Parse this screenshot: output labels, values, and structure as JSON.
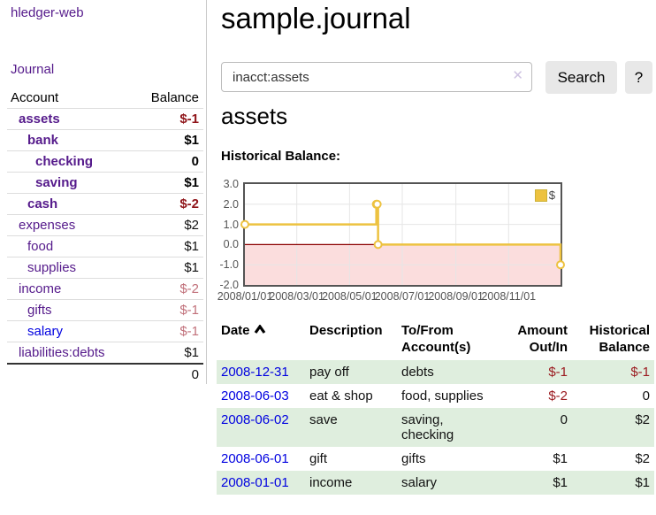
{
  "app": {
    "brand": "hledger-web"
  },
  "colors": {
    "link_purple": "#551a8b",
    "link_blue": "#0000e0",
    "negative_strong": "#8f1419",
    "negative_soft": "#c1707a",
    "row_stripe_green": "#dfeede",
    "series_yellow": "#edc240"
  },
  "sidebar": {
    "journal_label": "Journal",
    "accounts_table": {
      "headers": {
        "account": "Account",
        "balance": "Balance"
      },
      "rows": [
        {
          "name": "assets",
          "balance": "$-1"
        },
        {
          "name": "bank",
          "balance": "$1"
        },
        {
          "name": "checking",
          "balance": "0"
        },
        {
          "name": "saving",
          "balance": "$1"
        },
        {
          "name": "cash",
          "balance": "$-2"
        },
        {
          "name": "expenses",
          "balance": "$2"
        },
        {
          "name": "food",
          "balance": "$1"
        },
        {
          "name": "supplies",
          "balance": "$1"
        },
        {
          "name": "income",
          "balance": "$-2"
        },
        {
          "name": "gifts",
          "balance": "$-1"
        },
        {
          "name": "salary",
          "balance": "$-1"
        },
        {
          "name": "liabilities:debts",
          "balance": "$1"
        }
      ],
      "total": "0"
    }
  },
  "main": {
    "title": "sample.journal",
    "search": {
      "value": "inacct:assets",
      "clear_icon": "✕",
      "button_label": "Search",
      "help_label": "?"
    },
    "account_heading": "assets",
    "chart_heading": "Historical Balance:"
  },
  "chart_data": {
    "type": "line",
    "step": true,
    "title": "Historical Balance:",
    "series": [
      {
        "name": "$",
        "color": "#edc240",
        "points": [
          [
            "2008-01-01",
            1
          ],
          [
            "2008-06-01",
            2
          ],
          [
            "2008-06-02",
            2
          ],
          [
            "2008-06-03",
            0
          ],
          [
            "2008-12-31",
            -1
          ]
        ]
      }
    ],
    "xlim": [
      "2008-01-01",
      "2008-12-31"
    ],
    "ylim": [
      -2,
      3
    ],
    "x_ticks": [
      "2008/01/01",
      "2008/03/01",
      "2008/05/01",
      "2008/07/01",
      "2008/09/01",
      "2008/11/01"
    ],
    "y_ticks": [
      "3.0",
      "2.0",
      "1.0",
      "0.0",
      "-1.0",
      "-2.0"
    ],
    "grid": true,
    "legend_position": "top-right",
    "negative_region_fill": "#fbdddd",
    "zero_line_color": "#8b0000"
  },
  "transactions": {
    "headers": {
      "date": "Date",
      "description": "Description",
      "accounts": "To/From\nAccount(s)",
      "amount": "Amount\nOut/In",
      "balance": "Historical\nBalance"
    },
    "rows": [
      {
        "date": "2008-12-31",
        "description": "pay off",
        "accounts": "debts",
        "amount": "$-1",
        "balance": "$-1"
      },
      {
        "date": "2008-06-03",
        "description": "eat & shop",
        "accounts": "food, supplies",
        "amount": "$-2",
        "balance": "0"
      },
      {
        "date": "2008-06-02",
        "description": "save",
        "accounts": "saving, checking",
        "amount": "0",
        "balance": "$2"
      },
      {
        "date": "2008-06-01",
        "description": "gift",
        "accounts": "gifts",
        "amount": "$1",
        "balance": "$2"
      },
      {
        "date": "2008-01-01",
        "description": "income",
        "accounts": "salary",
        "amount": "$1",
        "balance": "$1"
      }
    ]
  }
}
